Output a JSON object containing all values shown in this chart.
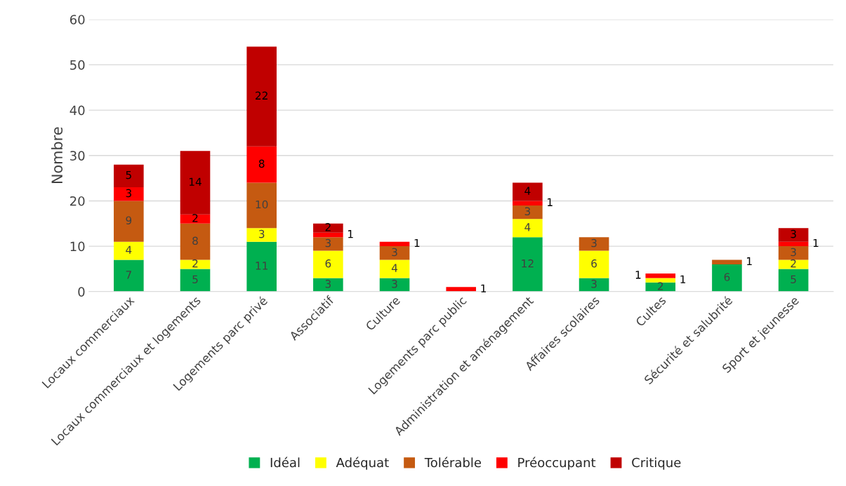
{
  "chart_data": {
    "type": "bar",
    "stacked": true,
    "ylabel": "Nombre",
    "categories": [
      "Locaux commerciaux",
      "Locaux commerciaux et logements",
      "Logements parc privé",
      "Associatif",
      "Culture",
      "Logements parc public",
      "Administration et aménagement",
      "Affaires scolaires",
      "Cultes",
      "Sécurité et salubrité",
      "Sport et jeunesse"
    ],
    "series": [
      {
        "name": "Idéal",
        "color": "#00b050",
        "values": [
          7,
          5,
          11,
          3,
          3,
          null,
          12,
          3,
          2,
          6,
          5
        ]
      },
      {
        "name": "Adéquat",
        "color": "#ffff00",
        "values": [
          4,
          2,
          3,
          6,
          4,
          null,
          4,
          6,
          1,
          null,
          2
        ]
      },
      {
        "name": "Tolérable",
        "color": "#c55a11",
        "values": [
          9,
          8,
          10,
          3,
          3,
          null,
          3,
          3,
          null,
          1,
          3
        ]
      },
      {
        "name": "Préoccupant",
        "color": "#ff0000",
        "values": [
          3,
          2,
          8,
          1,
          1,
          1,
          1,
          null,
          1,
          null,
          1
        ]
      },
      {
        "name": "Critique",
        "color": "#c00000",
        "values": [
          5,
          14,
          22,
          2,
          null,
          null,
          4,
          null,
          null,
          null,
          3
        ]
      }
    ],
    "ylim": [
      0,
      60
    ],
    "yticks": [
      0,
      10,
      20,
      30,
      40,
      50,
      60
    ],
    "grid": "y",
    "legend": "bottom",
    "data_labels": true
  }
}
